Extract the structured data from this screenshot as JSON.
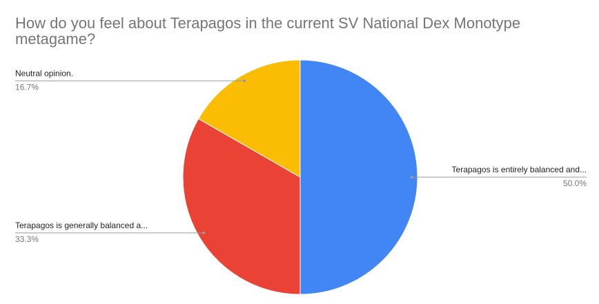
{
  "chart_data": {
    "type": "pie",
    "title": "How do you feel about Terapagos in the current SV National Dex Monotype metagame?",
    "categories": [
      "Terapagos is entirely balanced and...",
      "Terapagos is generally balanced a...",
      "Neutral opinion."
    ],
    "values": [
      50.0,
      33.3,
      16.7
    ],
    "value_labels": [
      "50.0%",
      "33.3%",
      "16.7%"
    ],
    "colors": [
      "#4285f4",
      "#ea4335",
      "#fbbc04"
    ]
  }
}
